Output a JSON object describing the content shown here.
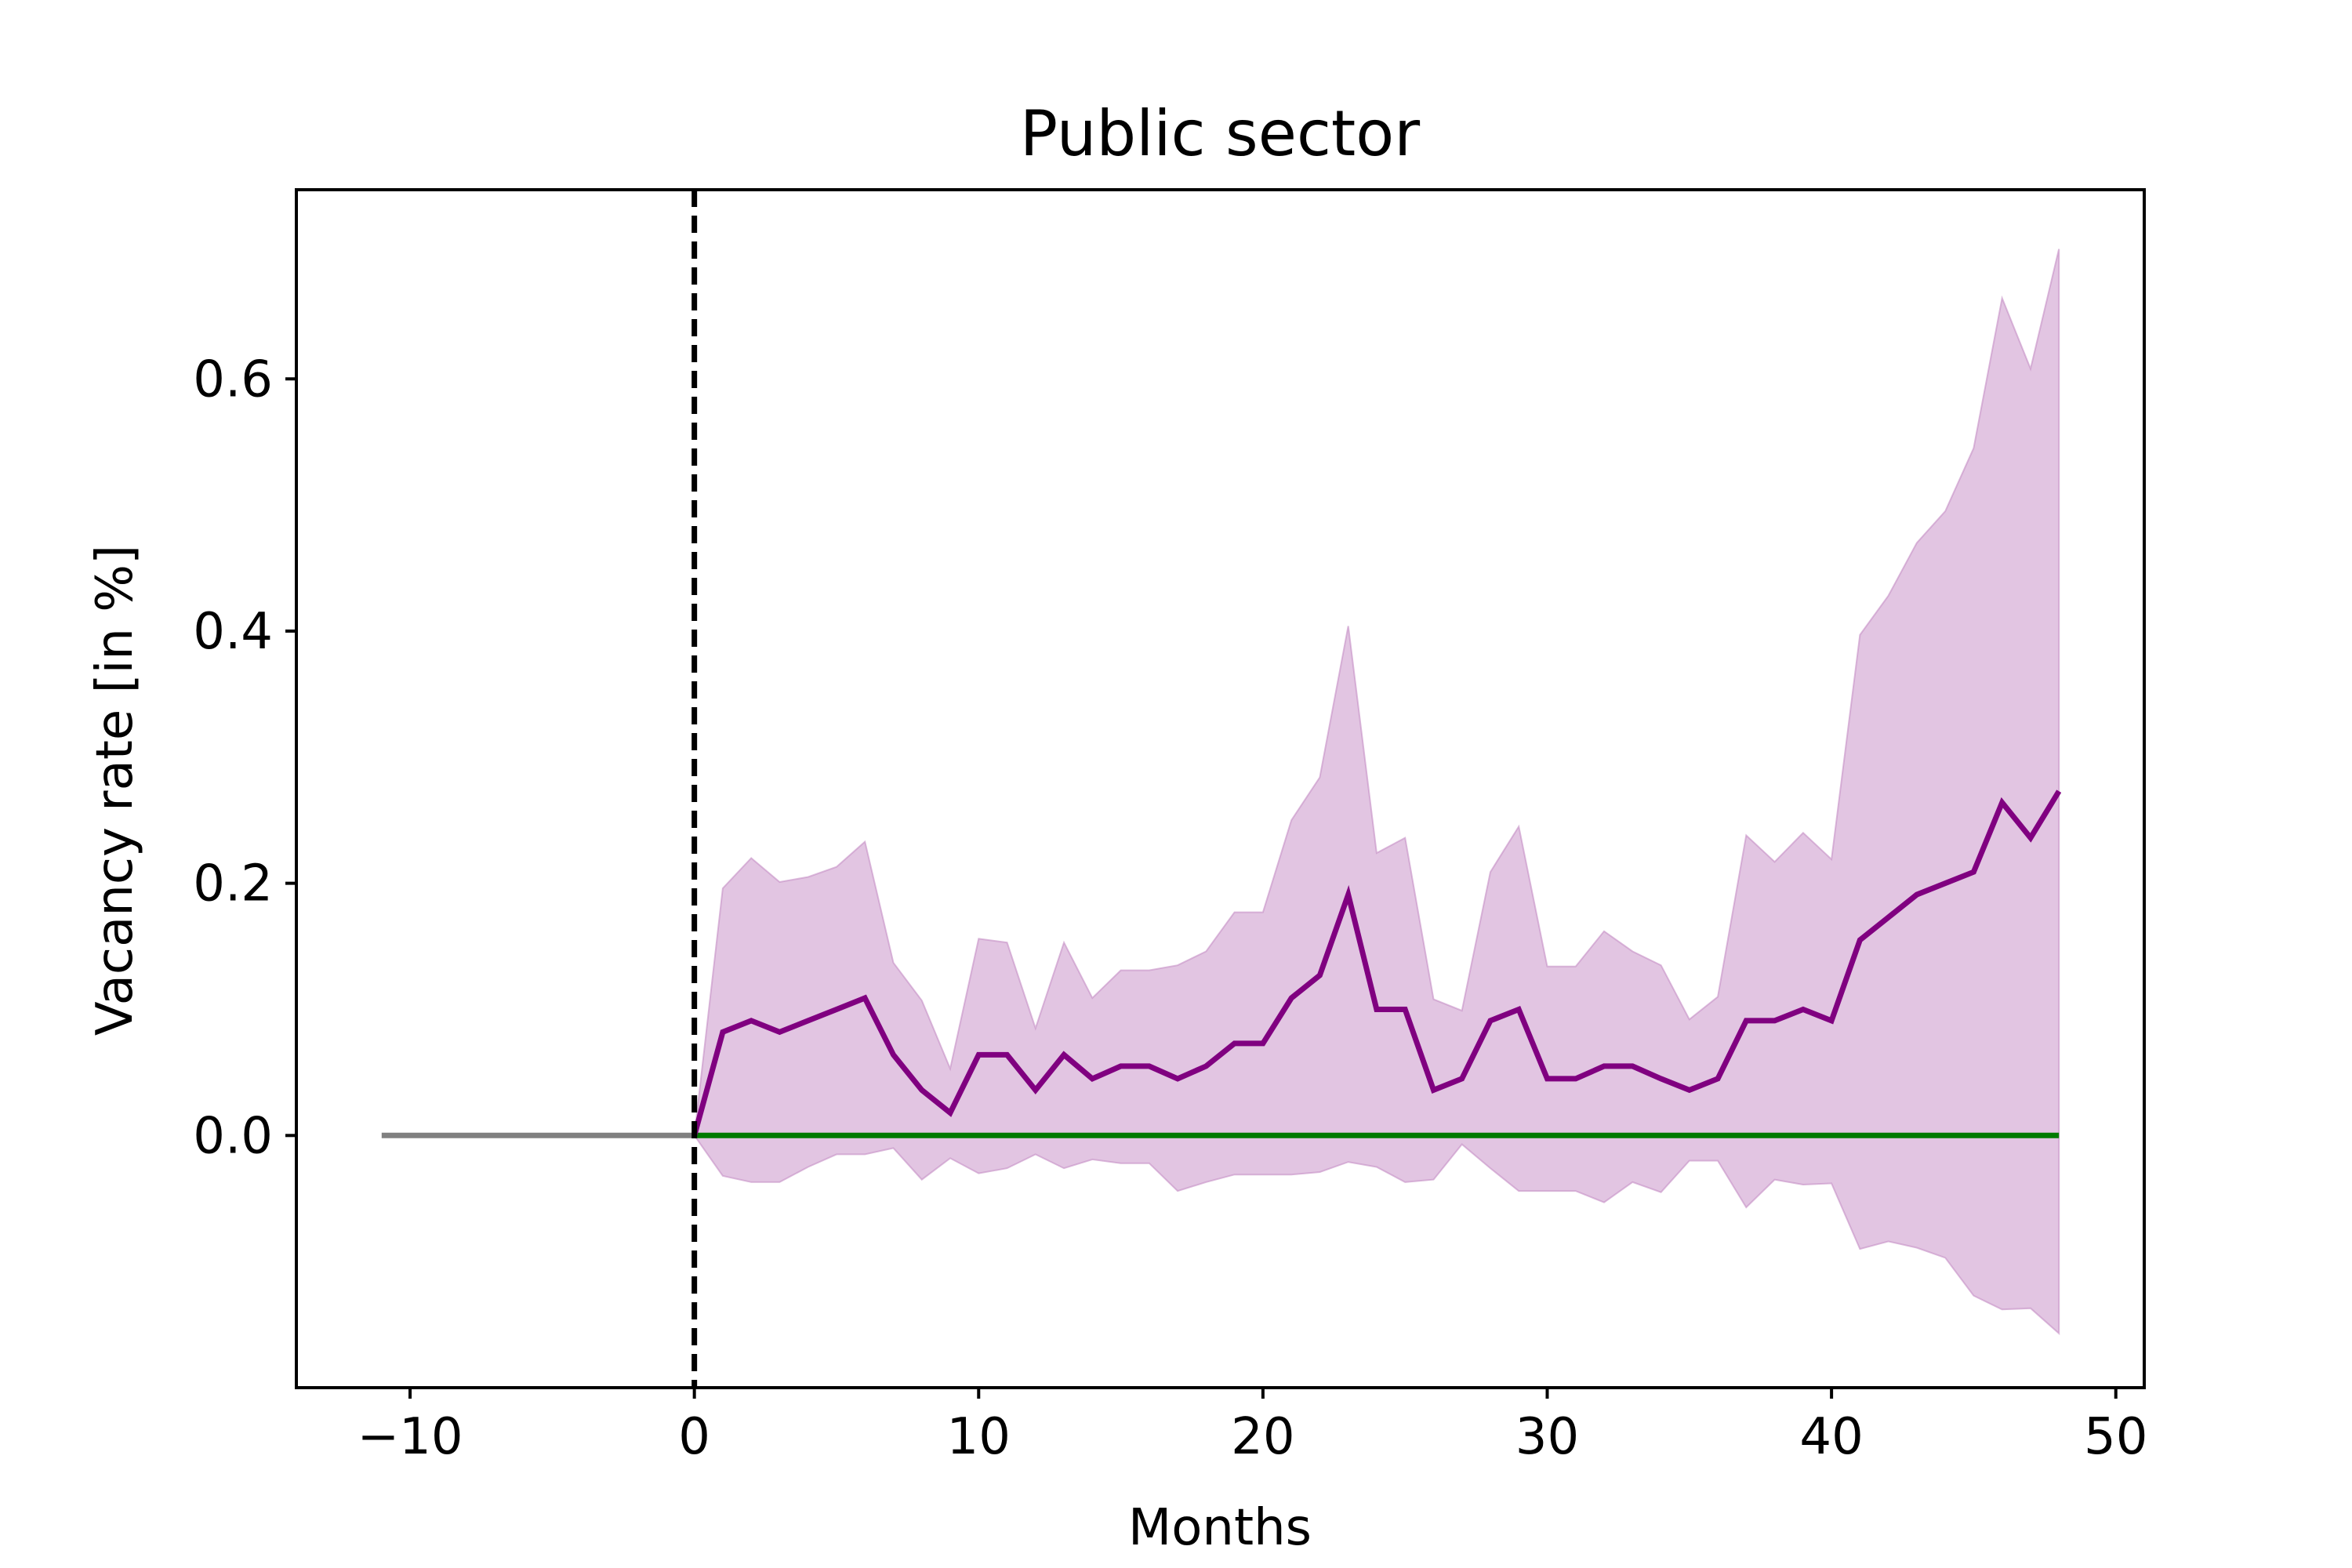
{
  "chart_data": {
    "type": "line",
    "title": "Public sector",
    "xlabel": "Months",
    "ylabel": "Vacancy rate [in %]",
    "xlim": [
      -14,
      51
    ],
    "ylim": [
      -0.2,
      0.75
    ],
    "xticks": [
      -10,
      0,
      10,
      20,
      30,
      40,
      50
    ],
    "xtick_labels": [
      "−10",
      "0",
      "10",
      "20",
      "30",
      "40",
      "50"
    ],
    "yticks": [
      0.0,
      0.2,
      0.4,
      0.6
    ],
    "ytick_labels": [
      "0.0",
      "0.2",
      "0.4",
      "0.6"
    ],
    "grid": false,
    "legend": null,
    "vline": {
      "x": 0,
      "style": "dashed",
      "color": "#000000"
    },
    "series": [
      {
        "role": "pre-period",
        "color": "#808080",
        "x": [
          -11,
          0
        ],
        "y": [
          0.0,
          0.0
        ]
      },
      {
        "role": "baseline",
        "color": "#007a00",
        "x": [
          0,
          48
        ],
        "y": [
          0.0,
          0.0
        ]
      },
      {
        "role": "estimate",
        "color": "#800080",
        "band_color": "#d8b2d8",
        "x": [
          0,
          1,
          2,
          3,
          4,
          5,
          6,
          7,
          8,
          9,
          10,
          11,
          12,
          13,
          14,
          15,
          16,
          17,
          18,
          19,
          20,
          21,
          22,
          23,
          24,
          25,
          26,
          27,
          28,
          29,
          30,
          31,
          32,
          33,
          34,
          35,
          36,
          37,
          38,
          39,
          40,
          41,
          42,
          43,
          44,
          45,
          46,
          47,
          48
        ],
        "y": [
          0.0,
          0.082,
          0.091,
          0.082,
          0.091,
          0.1,
          0.109,
          0.064,
          0.036,
          0.018,
          0.064,
          0.064,
          0.036,
          0.064,
          0.045,
          0.055,
          0.055,
          0.045,
          0.055,
          0.073,
          0.073,
          0.109,
          0.127,
          0.191,
          0.1,
          0.1,
          0.036,
          0.045,
          0.091,
          0.1,
          0.045,
          0.045,
          0.055,
          0.055,
          0.045,
          0.036,
          0.045,
          0.091,
          0.091,
          0.1,
          0.091,
          0.155,
          0.173,
          0.191,
          0.2,
          0.209,
          0.264,
          0.236,
          0.273
        ],
        "lower": [
          0.0,
          -0.032,
          -0.037,
          -0.037,
          -0.025,
          -0.015,
          -0.015,
          -0.01,
          -0.035,
          -0.018,
          -0.03,
          -0.026,
          -0.015,
          -0.026,
          -0.019,
          -0.022,
          -0.022,
          -0.044,
          -0.037,
          -0.031,
          -0.031,
          -0.031,
          -0.029,
          -0.021,
          -0.025,
          -0.037,
          -0.035,
          -0.007,
          -0.026,
          -0.044,
          -0.044,
          -0.044,
          -0.053,
          -0.037,
          -0.045,
          -0.02,
          -0.02,
          -0.057,
          -0.035,
          -0.039,
          -0.038,
          -0.09,
          -0.084,
          -0.089,
          -0.097,
          -0.127,
          -0.138,
          -0.137,
          -0.157
        ],
        "upper": [
          0.0,
          0.196,
          0.22,
          0.201,
          0.205,
          0.213,
          0.233,
          0.137,
          0.107,
          0.053,
          0.156,
          0.153,
          0.085,
          0.153,
          0.109,
          0.131,
          0.131,
          0.135,
          0.146,
          0.177,
          0.177,
          0.25,
          0.284,
          0.404,
          0.224,
          0.236,
          0.108,
          0.099,
          0.209,
          0.245,
          0.134,
          0.134,
          0.162,
          0.146,
          0.135,
          0.092,
          0.11,
          0.238,
          0.217,
          0.24,
          0.219,
          0.397,
          0.428,
          0.47,
          0.495,
          0.545,
          0.664,
          0.608,
          0.703
        ]
      }
    ]
  }
}
